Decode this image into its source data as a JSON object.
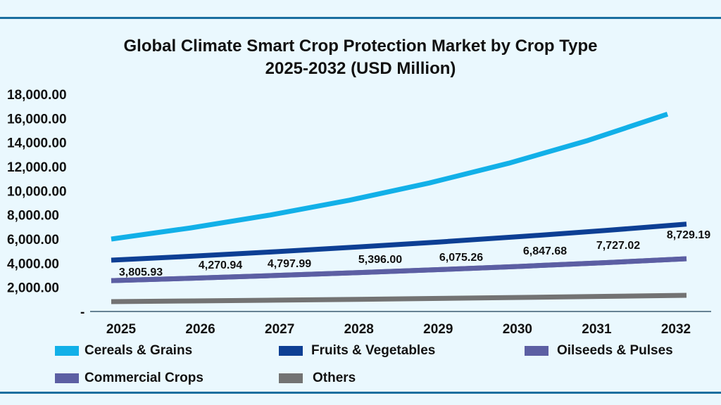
{
  "chart_data": {
    "type": "line",
    "title": "Global Climate Smart Crop Protection Market by Crop Type",
    "subtitle": "2025-2032 (USD Million)",
    "categories": [
      "2025",
      "2026",
      "2027",
      "2028",
      "2029",
      "2030",
      "2031",
      "2032"
    ],
    "y_ticks": [
      "-",
      "2,000.00",
      "4,000.00",
      "6,000.00",
      "8,000.00",
      "10,000.00",
      "12,000.00",
      "14,000.00",
      "16,000.00",
      "18,000.00"
    ],
    "ylim": [
      0,
      18000
    ],
    "grid": false,
    "legend_position": "bottom",
    "series": [
      {
        "name": "Cereals & Grains",
        "color": "#12b0e8",
        "values": [
          6000,
          6925,
          7990,
          9220,
          10640,
          12280,
          14170,
          16350
        ]
      },
      {
        "name": "Fruits & Vegetables",
        "color": "#0d3f94",
        "values": [
          4250,
          4585,
          4950,
          5340,
          5760,
          6215,
          6705,
          7235
        ]
      },
      {
        "name": "Oilseeds & Pulses",
        "color": "#5c5fa3",
        "values": [
          2560,
          2760,
          2980,
          3220,
          3470,
          3745,
          4040,
          4370
        ]
      },
      {
        "name": "Commercial Crops",
        "color": "#5c5fa3",
        "values": [
          2560,
          2760,
          2980,
          3220,
          3470,
          3745,
          4040,
          4370
        ]
      },
      {
        "name": "Others",
        "color": "#737373",
        "values": [
          815,
          875,
          940,
          1010,
          1085,
          1165,
          1250,
          1340
        ]
      }
    ],
    "data_labels": [
      "3,805.93",
      "4,270.94",
      "4,797.99",
      "5,396.00",
      "6,075.26",
      "6,847.68",
      "7,727.02",
      "8,729.19"
    ]
  }
}
